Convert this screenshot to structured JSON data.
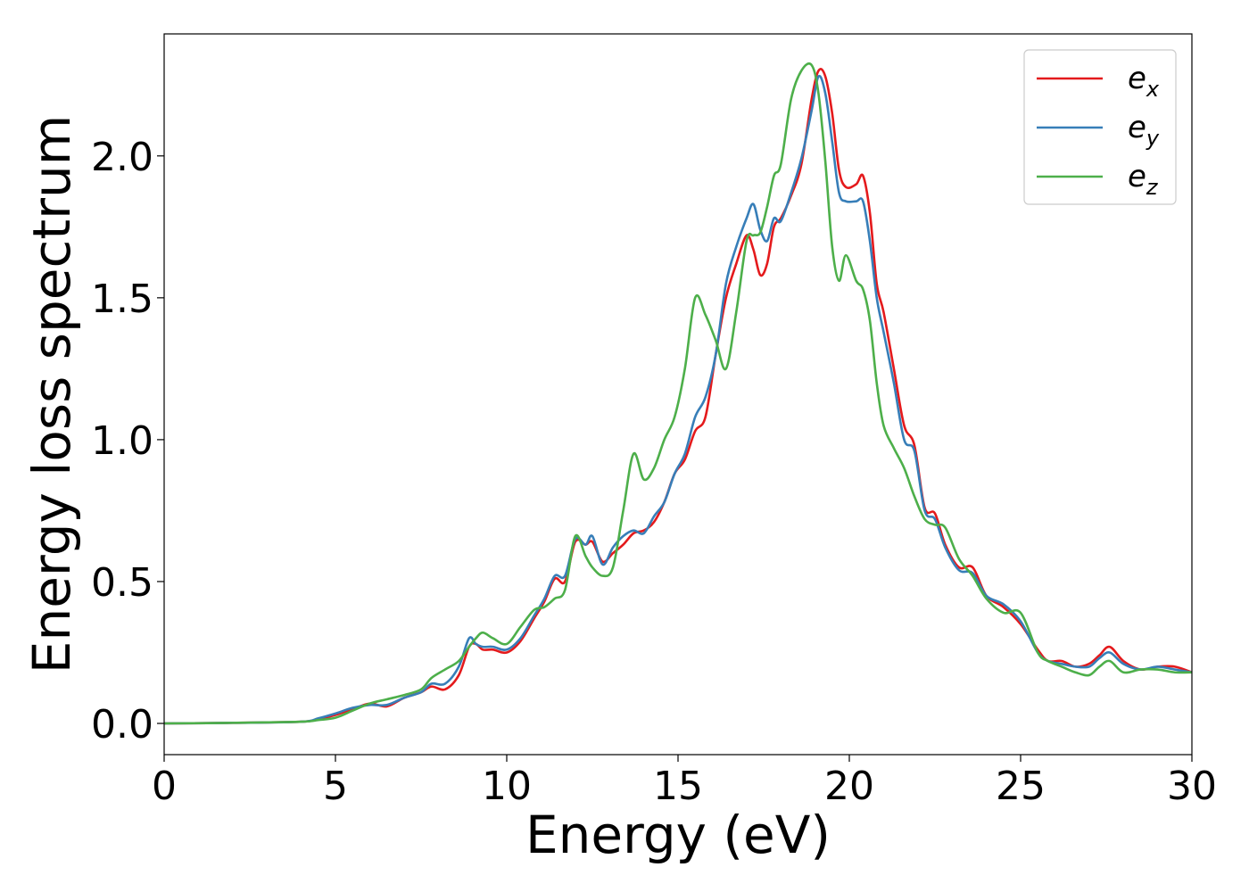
{
  "chart_data": {
    "type": "line",
    "title": "",
    "xlabel": "Energy (eV)",
    "ylabel": "Energy loss spectrum",
    "xlim": [
      0,
      30
    ],
    "ylim": [
      -0.11,
      2.43
    ],
    "xticks": [
      0,
      5,
      10,
      15,
      20,
      25,
      30
    ],
    "xtick_labels": [
      "0",
      "5",
      "10",
      "15",
      "20",
      "25",
      "30"
    ],
    "yticks": [
      0.0,
      0.5,
      1.0,
      1.5,
      2.0
    ],
    "ytick_labels": [
      "0.0",
      "0.5",
      "1.0",
      "1.5",
      "2.0"
    ],
    "grid": false,
    "legend_position": "top-right",
    "series": [
      {
        "name": "e_x",
        "label_base": "e",
        "label_sub": "x",
        "color": "#e41a1c",
        "x": [
          0,
          2,
          4,
          4.5,
          5,
          5.5,
          6,
          6.5,
          7,
          7.5,
          7.8,
          8.2,
          8.6,
          8.9,
          9.1,
          9.3,
          9.6,
          10,
          10.4,
          10.8,
          11.1,
          11.4,
          11.7,
          12,
          12.3,
          12.5,
          12.8,
          13.1,
          13.4,
          13.7,
          14,
          14.3,
          14.6,
          14.9,
          15.2,
          15.5,
          15.8,
          16.1,
          16.4,
          16.7,
          17,
          17.2,
          17.4,
          17.6,
          17.8,
          18.0,
          18.3,
          18.6,
          18.9,
          19.1,
          19.3,
          19.5,
          19.7,
          19.9,
          20.2,
          20.4,
          20.6,
          20.8,
          21.0,
          21.3,
          21.6,
          21.9,
          22.2,
          22.5,
          22.8,
          23.2,
          23.6,
          24.0,
          24.5,
          25.0,
          25.5,
          25.8,
          26.2,
          26.6,
          27.0,
          27.3,
          27.6,
          28.0,
          28.5,
          29.0,
          29.5,
          30
        ],
        "y": [
          0,
          0.002,
          0.006,
          0.015,
          0.03,
          0.05,
          0.07,
          0.06,
          0.09,
          0.11,
          0.13,
          0.12,
          0.17,
          0.27,
          0.28,
          0.26,
          0.26,
          0.25,
          0.29,
          0.37,
          0.43,
          0.51,
          0.5,
          0.64,
          0.63,
          0.64,
          0.57,
          0.6,
          0.63,
          0.67,
          0.68,
          0.71,
          0.78,
          0.88,
          0.93,
          1.03,
          1.08,
          1.3,
          1.5,
          1.62,
          1.72,
          1.67,
          1.58,
          1.62,
          1.75,
          1.78,
          1.86,
          1.97,
          2.2,
          2.3,
          2.28,
          2.15,
          1.95,
          1.89,
          1.9,
          1.93,
          1.8,
          1.55,
          1.45,
          1.25,
          1.05,
          0.98,
          0.76,
          0.74,
          0.63,
          0.55,
          0.55,
          0.45,
          0.41,
          0.35,
          0.26,
          0.22,
          0.22,
          0.2,
          0.21,
          0.24,
          0.27,
          0.22,
          0.19,
          0.2,
          0.2,
          0.18
        ]
      },
      {
        "name": "e_y",
        "label_base": "e",
        "label_sub": "y",
        "color": "#377eb8",
        "x": [
          0,
          2,
          4,
          4.5,
          5,
          5.5,
          6,
          6.5,
          7,
          7.5,
          7.8,
          8.2,
          8.6,
          8.9,
          9.1,
          9.3,
          9.6,
          10,
          10.4,
          10.8,
          11.1,
          11.4,
          11.7,
          12,
          12.3,
          12.5,
          12.8,
          13.1,
          13.4,
          13.7,
          14,
          14.3,
          14.6,
          14.9,
          15.2,
          15.5,
          15.8,
          16.1,
          16.4,
          16.7,
          17,
          17.2,
          17.4,
          17.6,
          17.8,
          18.0,
          18.3,
          18.6,
          18.9,
          19.1,
          19.3,
          19.5,
          19.7,
          19.9,
          20.2,
          20.4,
          20.6,
          20.8,
          21.0,
          21.3,
          21.6,
          21.9,
          22.2,
          22.5,
          22.8,
          23.2,
          23.6,
          24.0,
          24.5,
          25.0,
          25.5,
          25.8,
          26.2,
          26.6,
          27.0,
          27.3,
          27.6,
          28.0,
          28.5,
          29.0,
          29.5,
          30
        ],
        "y": [
          0,
          0.002,
          0.006,
          0.018,
          0.035,
          0.055,
          0.065,
          0.065,
          0.09,
          0.11,
          0.14,
          0.14,
          0.2,
          0.3,
          0.28,
          0.27,
          0.27,
          0.26,
          0.3,
          0.38,
          0.44,
          0.52,
          0.52,
          0.65,
          0.63,
          0.66,
          0.56,
          0.62,
          0.66,
          0.68,
          0.67,
          0.73,
          0.78,
          0.88,
          0.95,
          1.08,
          1.15,
          1.3,
          1.55,
          1.68,
          1.78,
          1.83,
          1.74,
          1.7,
          1.78,
          1.77,
          1.87,
          1.99,
          2.16,
          2.28,
          2.22,
          2.05,
          1.87,
          1.84,
          1.84,
          1.84,
          1.7,
          1.5,
          1.38,
          1.2,
          1.0,
          0.96,
          0.75,
          0.72,
          0.62,
          0.54,
          0.53,
          0.45,
          0.42,
          0.36,
          0.25,
          0.22,
          0.21,
          0.2,
          0.2,
          0.23,
          0.25,
          0.21,
          0.19,
          0.2,
          0.19,
          0.18
        ]
      },
      {
        "name": "e_z",
        "label_base": "e",
        "label_sub": "z",
        "color": "#4daf4a",
        "x": [
          0,
          2,
          4,
          4.5,
          5,
          5.5,
          6,
          6.5,
          7,
          7.5,
          7.8,
          8.2,
          8.6,
          8.9,
          9.1,
          9.3,
          9.6,
          10,
          10.4,
          10.8,
          11.1,
          11.4,
          11.7,
          12,
          12.3,
          12.5,
          12.8,
          13.1,
          13.4,
          13.7,
          14,
          14.3,
          14.6,
          14.9,
          15.2,
          15.5,
          15.8,
          16.1,
          16.4,
          16.7,
          17,
          17.2,
          17.4,
          17.6,
          17.8,
          18.0,
          18.3,
          18.6,
          18.9,
          19.1,
          19.3,
          19.5,
          19.7,
          19.9,
          20.2,
          20.4,
          20.6,
          20.8,
          21.0,
          21.3,
          21.6,
          21.9,
          22.2,
          22.5,
          22.8,
          23.2,
          23.6,
          24.0,
          24.5,
          25.0,
          25.5,
          25.8,
          26.2,
          26.6,
          27.0,
          27.3,
          27.6,
          28.0,
          28.5,
          29.0,
          29.5,
          30
        ],
        "y": [
          0,
          0.002,
          0.006,
          0.012,
          0.02,
          0.045,
          0.07,
          0.085,
          0.1,
          0.12,
          0.16,
          0.19,
          0.22,
          0.27,
          0.3,
          0.32,
          0.3,
          0.28,
          0.34,
          0.4,
          0.41,
          0.44,
          0.47,
          0.66,
          0.59,
          0.55,
          0.52,
          0.55,
          0.75,
          0.95,
          0.86,
          0.9,
          1.0,
          1.08,
          1.25,
          1.5,
          1.44,
          1.35,
          1.25,
          1.45,
          1.7,
          1.72,
          1.73,
          1.82,
          1.93,
          1.97,
          2.2,
          2.3,
          2.32,
          2.22,
          1.98,
          1.68,
          1.56,
          1.65,
          1.56,
          1.53,
          1.42,
          1.2,
          1.05,
          0.97,
          0.9,
          0.8,
          0.72,
          0.7,
          0.69,
          0.58,
          0.52,
          0.44,
          0.39,
          0.39,
          0.25,
          0.22,
          0.2,
          0.18,
          0.17,
          0.2,
          0.22,
          0.18,
          0.19,
          0.19,
          0.18,
          0.18
        ]
      }
    ]
  }
}
